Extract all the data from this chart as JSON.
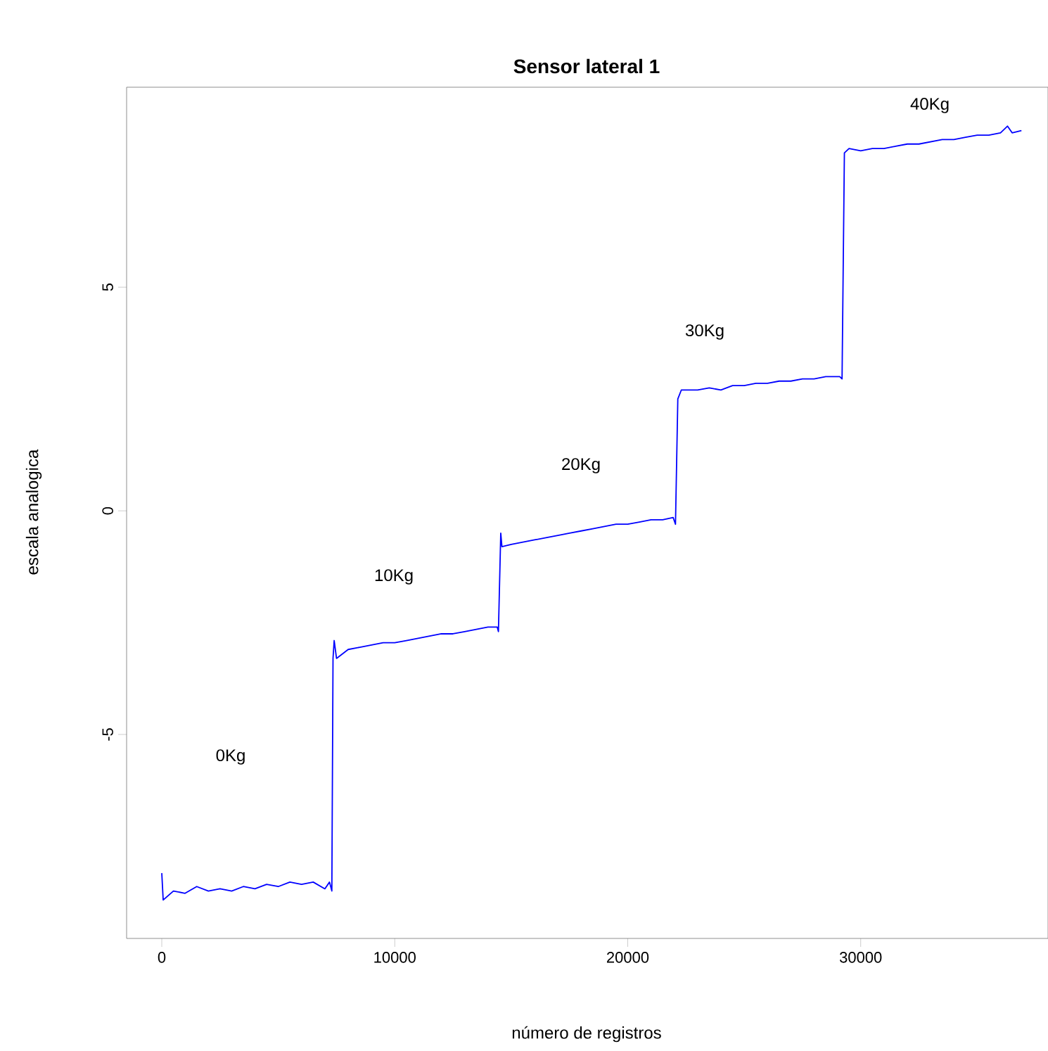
{
  "chart_data": {
    "type": "line",
    "title": "Sensor lateral 1",
    "xlabel": "número de registros",
    "ylabel": "escala analogica",
    "series": [
      {
        "color": "#0000ff",
        "x": [
          0,
          60,
          500,
          1000,
          1500,
          2000,
          2500,
          3000,
          3500,
          4000,
          4500,
          5000,
          5500,
          6000,
          6500,
          7000,
          7200,
          7300,
          7350,
          7400,
          7500,
          8000,
          8500,
          9000,
          9500,
          10000,
          10500,
          11000,
          11500,
          12000,
          12500,
          13000,
          13500,
          14000,
          14400,
          14450,
          14550,
          14600,
          15000,
          15500,
          16000,
          16500,
          17000,
          17500,
          18000,
          18500,
          19000,
          19500,
          20000,
          20500,
          21000,
          21500,
          21950,
          22050,
          22150,
          22300,
          23000,
          23500,
          24000,
          24500,
          25000,
          25500,
          26000,
          26500,
          27000,
          27500,
          28000,
          28500,
          29100,
          29200,
          29300,
          29500,
          30000,
          30500,
          31000,
          31500,
          32000,
          32500,
          33000,
          33500,
          34000,
          34500,
          35000,
          35500,
          36000,
          36300,
          36500,
          36900
        ],
        "values": [
          -8.1,
          -8.7,
          -8.5,
          -8.55,
          -8.4,
          -8.5,
          -8.45,
          -8.5,
          -8.4,
          -8.45,
          -8.35,
          -8.4,
          -8.3,
          -8.35,
          -8.3,
          -8.45,
          -8.3,
          -8.5,
          -3.3,
          -2.9,
          -3.3,
          -3.1,
          -3.05,
          -3.0,
          -2.95,
          -2.95,
          -2.9,
          -2.85,
          -2.8,
          -2.75,
          -2.75,
          -2.7,
          -2.65,
          -2.6,
          -2.6,
          -2.7,
          -0.5,
          -0.8,
          -0.75,
          -0.7,
          -0.65,
          -0.6,
          -0.55,
          -0.5,
          -0.45,
          -0.4,
          -0.35,
          -0.3,
          -0.3,
          -0.25,
          -0.2,
          -0.2,
          -0.15,
          -0.3,
          2.5,
          2.7,
          2.7,
          2.75,
          2.7,
          2.8,
          2.8,
          2.85,
          2.85,
          2.9,
          2.9,
          2.95,
          2.95,
          3.0,
          3.0,
          2.95,
          8.0,
          8.1,
          8.05,
          8.1,
          8.1,
          8.15,
          8.2,
          8.2,
          8.25,
          8.3,
          8.3,
          8.35,
          8.4,
          8.4,
          8.45,
          8.6,
          8.45,
          8.5
        ]
      }
    ],
    "annotations": [
      "0Kg",
      "10Kg",
      "20Kg",
      "30Kg",
      "40Kg"
    ],
    "xlim": [
      -1510,
      38040
    ],
    "ylim": [
      -9.56,
      9.47
    ],
    "xticks": [
      0,
      10000,
      20000,
      30000
    ],
    "yticks": [
      -5,
      0,
      5
    ],
    "grid": false,
    "marker": "none",
    "line_style": "solid"
  }
}
